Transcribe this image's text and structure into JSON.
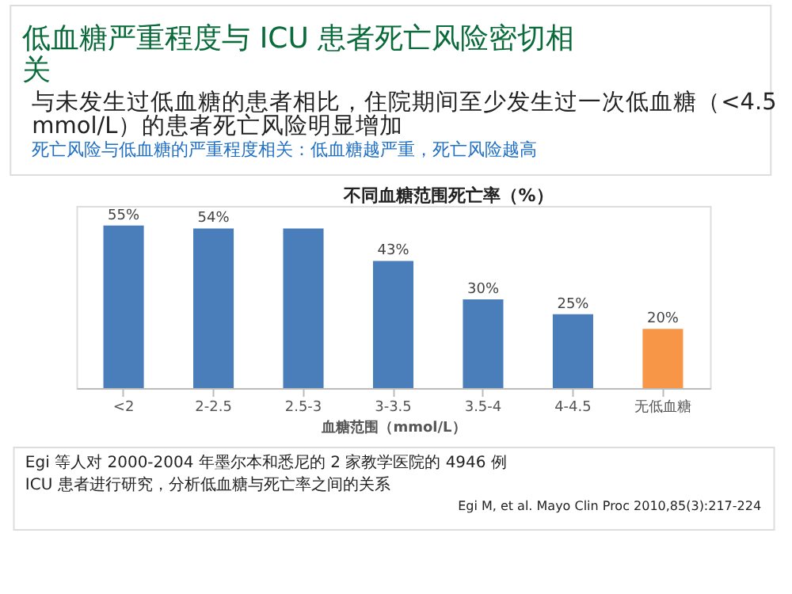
{
  "chart_data": {
    "type": "bar",
    "title": "低血糖严重程度与 ICU 患者死亡风险密切相关",
    "subtitle": [
      "与未发生过低血糖的患者相比，住院期间至少发生过一次低血糖（<4.5mmol/L）的患者死亡风险明显增加",
      "死亡风险与低血糖的严重程度相关：低血糖越严重，死亡风险越高"
    ],
    "annotations": [
      "不同血糖范围死亡率（%）",
      "Egi 等人对 2000-2004 年墨尔本和悉尼的 2 家教学医院的 4946 例 ICU 患者进行研究，分析低血糖与死亡率之间的关系",
      "Egi M, et al. Mayo Clin Proc 2010,85(3):217-224"
    ],
    "xlabel": "血糖范围（mmol/L）",
    "categories": [
      "<2",
      "2-2.5",
      "2.5-3",
      "3-3.5",
      "3.5-4",
      "4-4.5",
      "无低血糖"
    ],
    "values": [
      55,
      54,
      54,
      43,
      30,
      25,
      20
    ],
    "value_labels": [
      "55%",
      "54%",
      null,
      "43%",
      "30%",
      "25%",
      "20%"
    ],
    "colors": [
      "#4a7ebb",
      "#4a7ebb",
      "#4a7ebb",
      "#4a7ebb",
      "#4a7ebb",
      "#4a7ebb",
      "#f79646"
    ],
    "grid": false
  }
}
